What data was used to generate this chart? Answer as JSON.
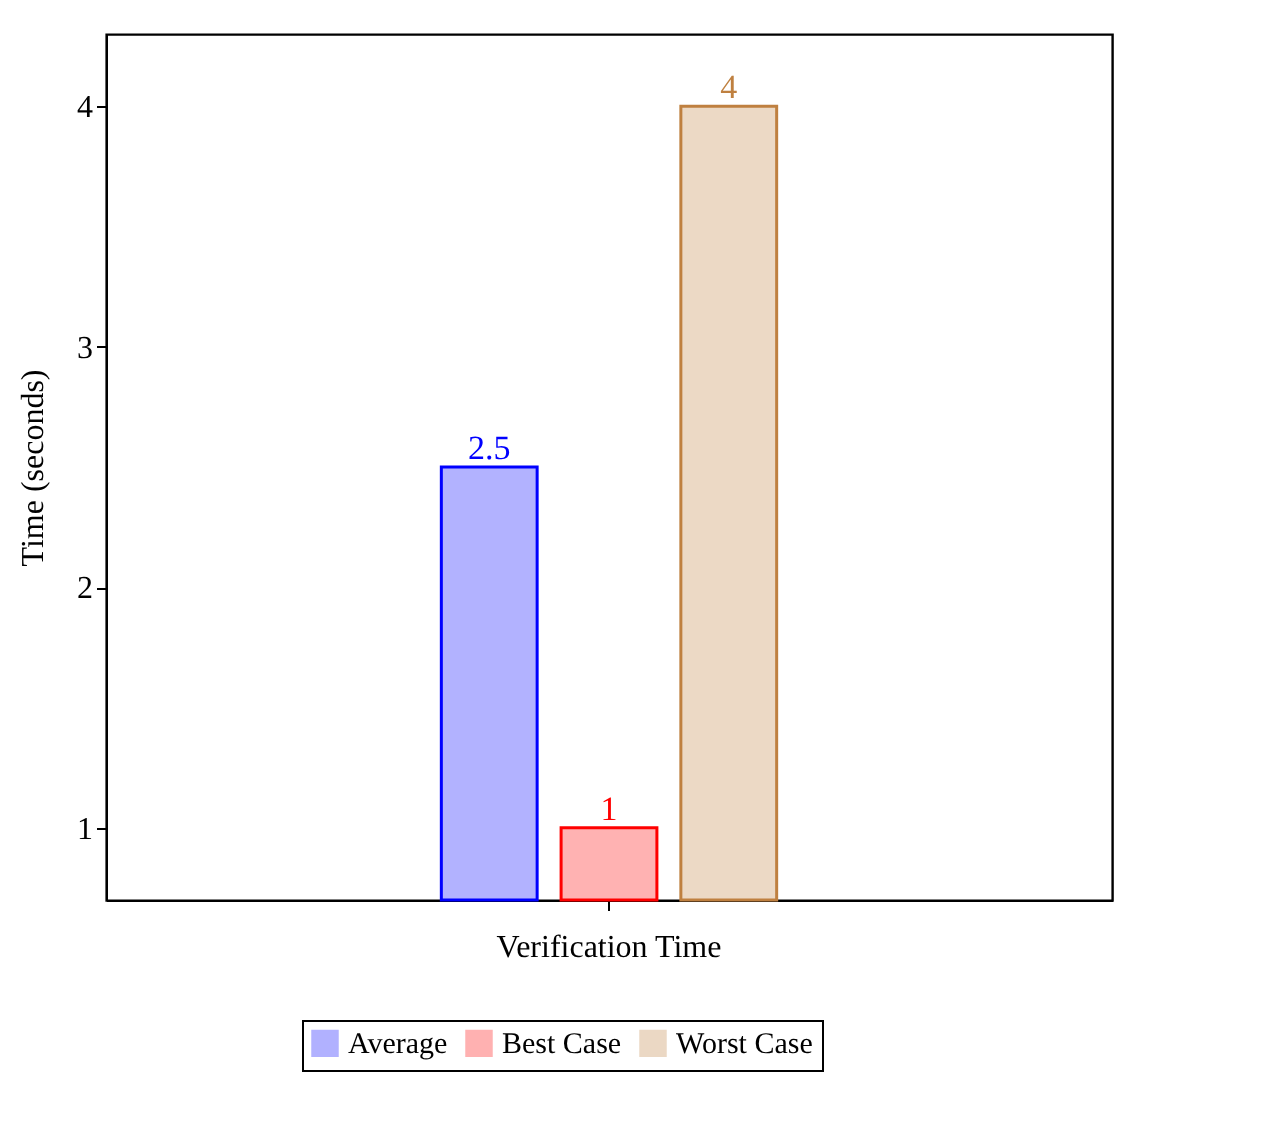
{
  "chart_data": {
    "type": "bar",
    "categories": [
      "Verification Time"
    ],
    "ylabel": "Time (seconds)",
    "series": [
      {
        "name": "Average",
        "color": "#0000ff",
        "values": [
          2.5
        ]
      },
      {
        "name": "Best Case",
        "color": "#ff0000",
        "values": [
          1
        ]
      },
      {
        "name": "Worst Case",
        "color": "#bf8040",
        "values": [
          4
        ]
      }
    ],
    "ylim": [
      0.7,
      4.3
    ],
    "yticks": [
      1,
      2,
      3,
      4
    ],
    "data_labels": true,
    "legend": "bottom",
    "grid": false
  }
}
